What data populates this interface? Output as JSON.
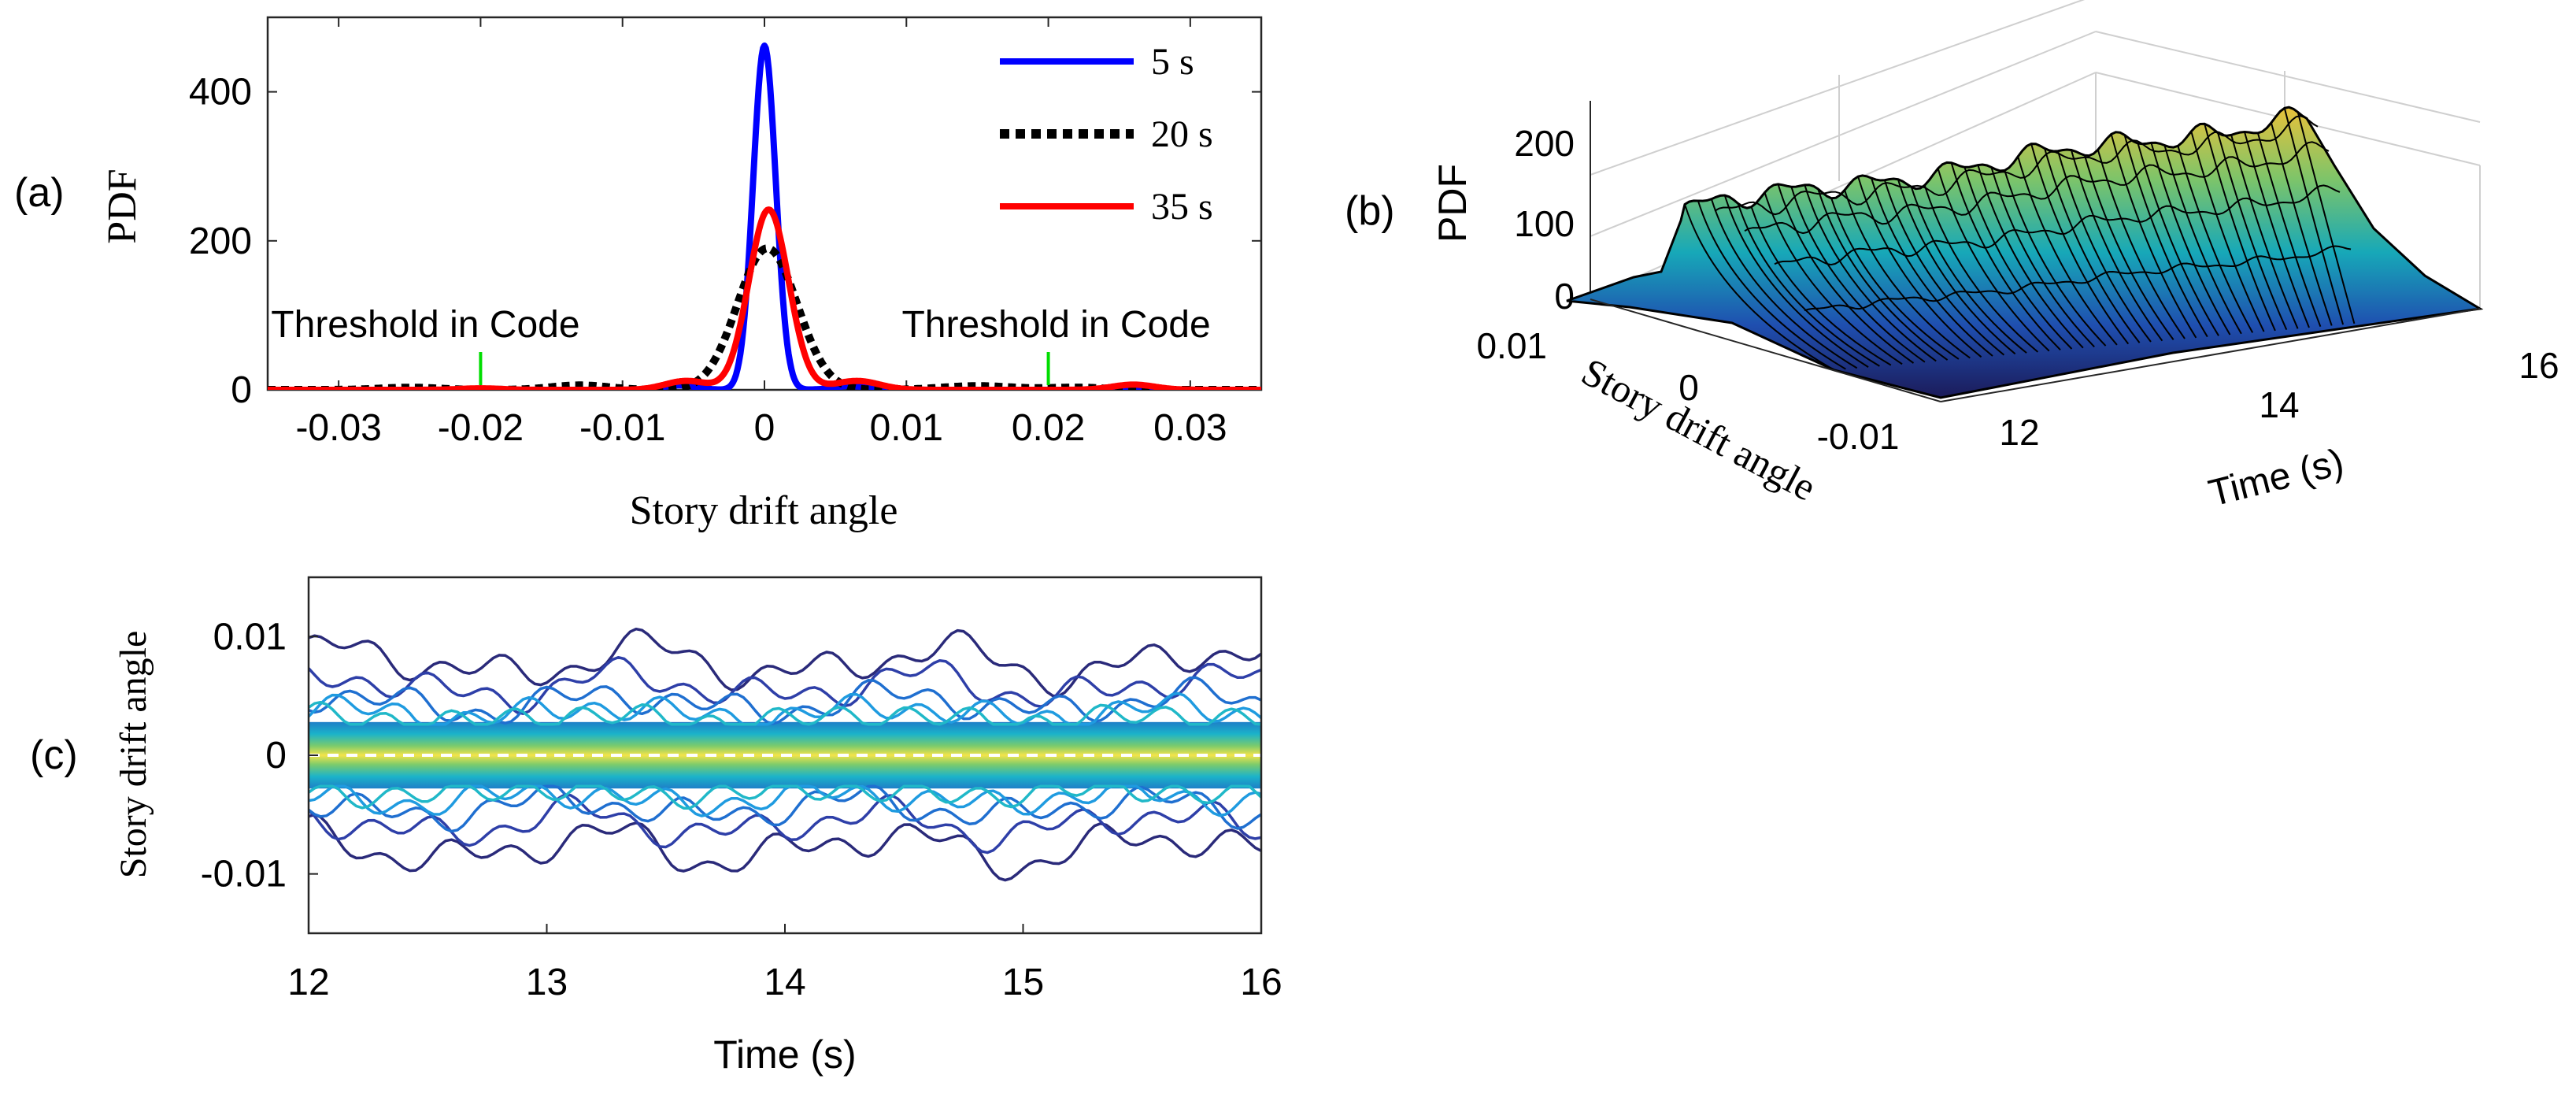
{
  "chart_data": [
    {
      "panel_label": "(a)",
      "type": "line",
      "xlabel": "Story drift angle",
      "ylabel": "PDF",
      "xlim": [
        -0.035,
        0.035
      ],
      "ylim": [
        0,
        500
      ],
      "xticks": [
        -0.03,
        -0.02,
        -0.01,
        0,
        0.01,
        0.02,
        0.03
      ],
      "xtick_labels": [
        "-0.03",
        "-0.02",
        "-0.01",
        "0",
        "0.01",
        "0.02",
        "0.03"
      ],
      "yticks": [
        0,
        200,
        400
      ],
      "ytick_labels": [
        "0",
        "200",
        "400"
      ],
      "legend_position": "top-right",
      "series": [
        {
          "name": "5 s",
          "color": "#0000ff",
          "style": "solid",
          "peak": 462,
          "center": 0,
          "sigma": 0.0008,
          "bumps": [
            [
              -0.006,
              6,
              0.0012
            ],
            [
              0.006,
              5,
              0.0012
            ]
          ]
        },
        {
          "name": "20 s",
          "color": "#000000",
          "style": "dotted",
          "peak": 190,
          "center": 0.0002,
          "sigma": 0.0021,
          "bumps": [
            [
              -0.013,
              6,
              0.002
            ],
            [
              0.015,
              5,
              0.0025
            ],
            [
              -0.025,
              3,
              0.002
            ],
            [
              0.022,
              3,
              0.002
            ]
          ]
        },
        {
          "name": "35 s",
          "color": "#ff0000",
          "style": "solid",
          "peak": 242,
          "center": 0.0003,
          "sigma": 0.0014,
          "bumps": [
            [
              -0.0055,
              12,
              0.0015
            ],
            [
              0.0065,
              12,
              0.0016
            ],
            [
              0.026,
              7,
              0.0015
            ],
            [
              -0.02,
              2,
              0.0015
            ]
          ]
        }
      ],
      "annotations": [
        {
          "text": "Threshold in Code",
          "x": -0.02
        },
        {
          "text": "Threshold in Code",
          "x": 0.02
        }
      ],
      "threshold_color": "#00dd00"
    },
    {
      "panel_label": "(b)",
      "type": "surface",
      "zlabel": "PDF",
      "ylabel": "Story drift angle",
      "xlabel": "Time (s)",
      "xlim": [
        12,
        16
      ],
      "ylim": [
        -0.015,
        0.015
      ],
      "zlim": [
        0,
        250
      ],
      "xtick_labels": [
        "12",
        "14",
        "16"
      ],
      "ytick_labels": [
        "0.01",
        "0",
        "-0.01"
      ],
      "ztick_labels": [
        "0",
        "100",
        "200"
      ],
      "ridge_peak_range": [
        170,
        225
      ],
      "colormap": "parula"
    },
    {
      "panel_label": "(c)",
      "type": "contour",
      "xlabel": "Time (s)",
      "ylabel": "Story drift angle",
      "xlim": [
        12,
        16
      ],
      "ylim": [
        -0.015,
        0.015
      ],
      "xtick_labels": [
        "12",
        "13",
        "14",
        "15",
        "16"
      ],
      "ytick_labels": [
        "0.01",
        "0",
        "-0.01"
      ],
      "colormap": "parula"
    }
  ]
}
